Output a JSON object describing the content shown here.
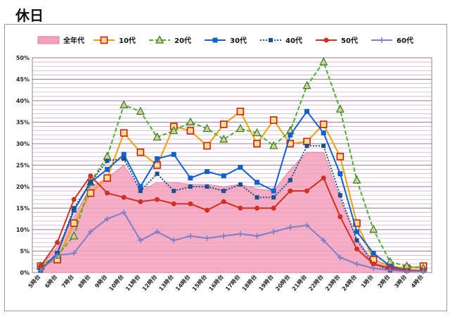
{
  "page": {
    "title": "休日"
  },
  "chart_data": {
    "type": "line",
    "title": "休日",
    "xlabel": "",
    "ylabel": "",
    "ylim": [
      0,
      50
    ],
    "y_ticks": [
      "0%",
      "5%",
      "10%",
      "15%",
      "20%",
      "25%",
      "30%",
      "35%",
      "40%",
      "45%",
      "50%"
    ],
    "grid": true,
    "legend_position": "top",
    "categories": [
      "5時台",
      "6時台",
      "7時台",
      "8時台",
      "9時台",
      "10時台",
      "11時台",
      "12時台",
      "13時台",
      "14時台",
      "15時台",
      "16時台",
      "17時台",
      "18時台",
      "19時台",
      "20時台",
      "21時台",
      "22時台",
      "23時台",
      "24時台",
      "1時台",
      "2時台",
      "3時台",
      "4時台"
    ],
    "series": [
      {
        "name": "全年代",
        "style": "area",
        "color": "#f4a0bc",
        "values": [
          1.5,
          6,
          13,
          20,
          22,
          25,
          19,
          21,
          21,
          20.5,
          20.5,
          20,
          20.5,
          19.5,
          19,
          24,
          28,
          28,
          17,
          8,
          2.5,
          1.2,
          0.7,
          0.5
        ]
      },
      {
        "name": "10代",
        "style": "line",
        "color": "#f0a000",
        "marker": "square-red",
        "values": [
          1.5,
          3,
          11.5,
          18.5,
          22,
          32.5,
          28,
          25,
          34,
          33,
          29.5,
          34.5,
          37.5,
          30,
          35.5,
          30,
          30.5,
          34.5,
          27,
          11.5,
          3,
          1.5,
          1,
          1.5
        ]
      },
      {
        "name": "20代",
        "style": "dashed",
        "color": "#4caf30",
        "marker": "triangle",
        "values": [
          1.5,
          4,
          8.5,
          21,
          27,
          39,
          37.5,
          31.5,
          33,
          35,
          33.5,
          31,
          33.5,
          32.5,
          29.5,
          33,
          43.5,
          49,
          38,
          21.5,
          10,
          2.5,
          1.5,
          1
        ]
      },
      {
        "name": "30代",
        "style": "line",
        "color": "#1060d0",
        "marker": "square",
        "values": [
          0.5,
          4.5,
          14.5,
          21,
          24,
          27.5,
          20,
          26.5,
          27.5,
          22,
          23.5,
          22.5,
          24.5,
          21,
          19,
          32,
          37.5,
          32.5,
          23,
          9.5,
          4.5,
          1.5,
          0.5,
          0.5
        ]
      },
      {
        "name": "40代",
        "style": "dotted",
        "color": "#1f4e8c",
        "marker": "square-small",
        "values": [
          0.5,
          4.5,
          15,
          21,
          26,
          26.5,
          19,
          23,
          19,
          20,
          20,
          19,
          20.5,
          17.5,
          17.5,
          21.5,
          29.5,
          29.5,
          18,
          7.5,
          2,
          0.5,
          0.5,
          0.5
        ]
      },
      {
        "name": "50代",
        "style": "line",
        "color": "#d03020",
        "marker": "circle",
        "values": [
          1.5,
          7,
          17,
          22.5,
          18.5,
          17.5,
          16.5,
          17,
          16,
          16,
          14.5,
          16.5,
          15,
          15,
          15,
          19,
          19,
          22,
          13,
          5.5,
          2,
          1,
          0.5,
          0.5
        ]
      },
      {
        "name": "60代",
        "style": "line",
        "color": "#7e7ec6",
        "marker": "plus",
        "values": [
          0.5,
          4,
          4.5,
          9.5,
          12.5,
          14,
          7.5,
          9.5,
          7.5,
          8.5,
          8,
          8.5,
          9,
          8.5,
          9.5,
          10.5,
          11,
          7.5,
          3.5,
          2,
          1,
          0.5,
          0.3,
          0.3
        ]
      }
    ]
  }
}
